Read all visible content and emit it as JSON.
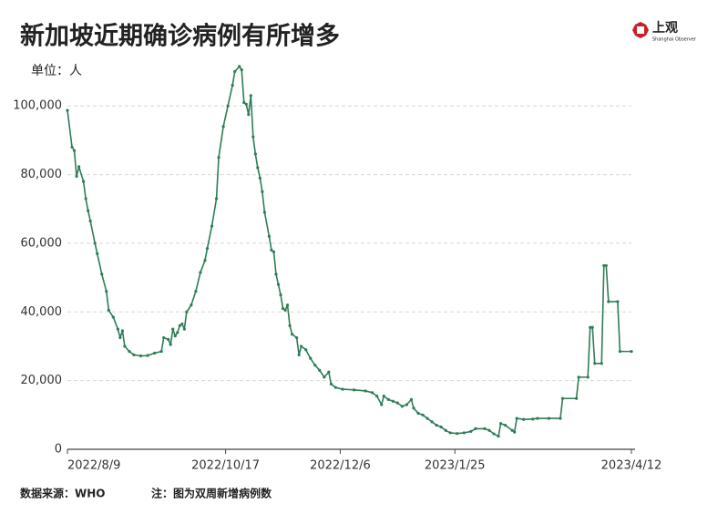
{
  "logo": {
    "name": "上观",
    "subtitle": "Shanghai Observer"
  },
  "chart_data": {
    "type": "line",
    "title": "新加坡近期确诊病例有所增多",
    "y_label": "单位：人",
    "source": "数据来源：WHO",
    "note": "注：图为双周新增病例数",
    "color": "#2e7d57",
    "grid": true,
    "markers": true,
    "x": [
      "2022/8/9",
      "2022/8/11",
      "2022/8/12",
      "2022/8/13",
      "2022/8/14",
      "2022/8/16",
      "2022/8/17",
      "2022/8/18",
      "2022/8/19",
      "2022/8/21",
      "2022/8/22",
      "2022/8/24",
      "2022/8/26",
      "2022/8/27",
      "2022/8/29",
      "2022/8/31",
      "2022/9/1",
      "2022/9/2",
      "2022/9/3",
      "2022/9/5",
      "2022/9/7",
      "2022/9/10",
      "2022/9/13",
      "2022/9/16",
      "2022/9/19",
      "2022/9/20",
      "2022/9/22",
      "2022/9/23",
      "2022/9/24",
      "2022/9/25",
      "2022/9/26",
      "2022/9/27",
      "2022/9/28",
      "2022/9/29",
      "2022/9/30",
      "2022/10/2",
      "2022/10/4",
      "2022/10/6",
      "2022/10/8",
      "2022/10/9",
      "2022/10/11",
      "2022/10/13",
      "2022/10/14",
      "2022/10/16",
      "2022/10/18",
      "2022/10/20",
      "2022/10/21",
      "2022/10/23",
      "2022/10/24",
      "2022/10/25",
      "2022/10/26",
      "2022/10/27",
      "2022/10/28",
      "2022/10/29",
      "2022/10/30",
      "2022/10/31",
      "2022/11/1",
      "2022/11/2",
      "2022/11/3",
      "2022/11/5",
      "2022/11/6",
      "2022/11/7",
      "2022/11/8",
      "2022/11/9",
      "2022/11/10",
      "2022/11/11",
      "2022/11/12",
      "2022/11/13",
      "2022/11/14",
      "2022/11/15",
      "2022/11/17",
      "2022/11/18",
      "2022/11/19",
      "2022/11/21",
      "2022/11/23",
      "2022/11/25",
      "2022/11/27",
      "2022/11/29",
      "2022/12/1",
      "2022/12/2",
      "2022/12/4",
      "2022/12/7",
      "2022/12/12",
      "2022/12/17",
      "2022/12/20",
      "2022/12/22",
      "2022/12/24",
      "2022/12/25",
      "2022/12/27",
      "2022/12/29",
      "2022/12/31",
      "2023/1/2",
      "2023/1/4",
      "2023/1/6",
      "2023/1/7",
      "2023/1/9",
      "2023/1/11",
      "2023/1/13",
      "2023/1/15",
      "2023/1/17",
      "2023/1/19",
      "2023/1/21",
      "2023/1/23",
      "2023/1/26",
      "2023/1/29",
      "2023/2/1",
      "2023/2/3",
      "2023/2/7",
      "2023/2/9",
      "2023/2/11",
      "2023/2/13",
      "2023/2/14",
      "2023/2/16",
      "2023/2/19",
      "2023/2/20",
      "2023/2/21",
      "2023/2/24",
      "2023/2/28",
      "2023/3/2",
      "2023/3/7",
      "2023/3/12",
      "2023/3/13",
      "2023/3/19",
      "2023/3/20",
      "2023/3/24",
      "2023/3/25",
      "2023/3/26",
      "2023/3/27",
      "2023/3/30",
      "2023/3/31",
      "2023/4/1",
      "2023/4/2",
      "2023/4/6",
      "2023/4/7",
      "2023/4/12"
    ],
    "values": [
      98700,
      88000,
      87000,
      79500,
      82300,
      78000,
      73000,
      69500,
      66500,
      60000,
      57000,
      51000,
      46000,
      40500,
      38500,
      35000,
      32500,
      34500,
      30000,
      28500,
      27500,
      27200,
      27300,
      28000,
      28500,
      32500,
      32000,
      30500,
      35000,
      33000,
      34000,
      36000,
      36500,
      35000,
      40000,
      42000,
      46000,
      51500,
      55000,
      58500,
      65000,
      73000,
      85000,
      94000,
      100000,
      106000,
      110000,
      111500,
      110500,
      101000,
      100500,
      97500,
      103000,
      91000,
      86000,
      82000,
      79000,
      75000,
      69000,
      62000,
      58000,
      57500,
      51000,
      48000,
      45000,
      41000,
      40500,
      42000,
      36000,
      33500,
      32500,
      27500,
      30000,
      29000,
      26500,
      24500,
      23000,
      21000,
      22500,
      19000,
      18000,
      17500,
      17300,
      17000,
      16500,
      15500,
      13000,
      15500,
      14500,
      14000,
      13500,
      12500,
      13000,
      14500,
      12000,
      10500,
      10000,
      9000,
      8000,
      7000,
      6500,
      5500,
      4800,
      4600,
      4800,
      5200,
      6000,
      6000,
      5500,
      4500,
      3800,
      7500,
      7000,
      5500,
      5000,
      9000,
      8700,
      8800,
      9000,
      9000,
      9000,
      14800,
      14800,
      21000,
      21000,
      35500,
      35500,
      25000,
      25000,
      53500,
      53500,
      43000,
      43000,
      28500,
      28500
    ],
    "xlim": [
      "2022/8/9",
      "2023/4/12"
    ],
    "xticks": [
      "2022/8/9",
      "2022/10/17",
      "2022/12/6",
      "2023/1/25",
      "2023/4/12"
    ],
    "ylim": [
      0,
      112000
    ],
    "yticks": [
      0,
      {
        "value": 20000,
        "label": "20,000"
      },
      {
        "value": 40000,
        "label": "40,000"
      },
      {
        "value": 60000,
        "label": "60,000"
      },
      {
        "value": 80000,
        "label": "80,000"
      },
      {
        "value": 100000,
        "label": "100,000"
      }
    ]
  }
}
